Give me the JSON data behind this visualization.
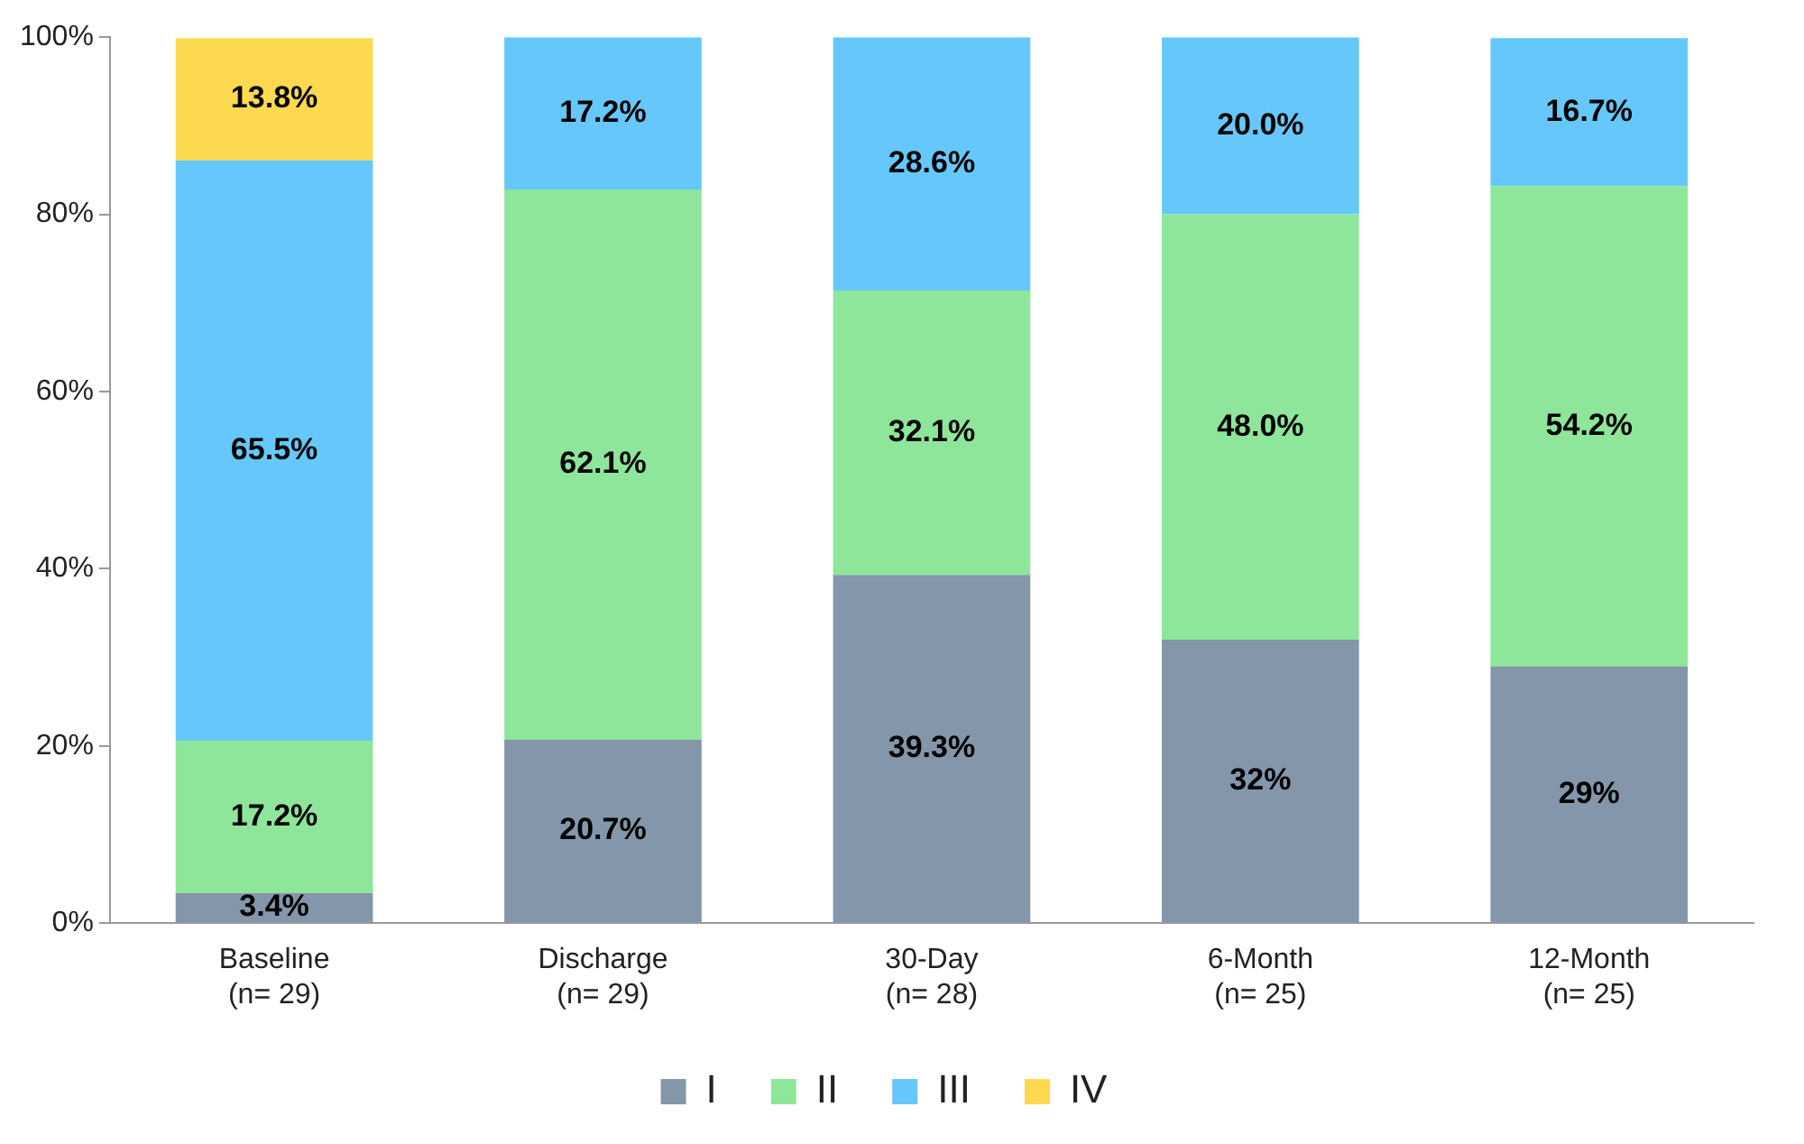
{
  "chart_data": {
    "type": "bar",
    "stacked": true,
    "categories": [
      "Baseline\n(n= 29)",
      "Discharge\n(n= 29)",
      "30-Day\n(n= 28)",
      "6-Month\n(n= 25)",
      "12-Month\n(n= 25)"
    ],
    "series": [
      {
        "name": "I",
        "color": "#8496a9",
        "values": [
          3.4,
          20.7,
          39.3,
          32,
          29
        ],
        "value_labels": [
          "3.4%",
          "20.7%",
          "39.3%",
          "32%",
          "29%"
        ]
      },
      {
        "name": "II",
        "color": "#8ee69a",
        "values": [
          17.2,
          62.1,
          32.1,
          48.0,
          54.2
        ],
        "value_labels": [
          "17.2%",
          "62.1%",
          "32.1%",
          "48.0%",
          "54.2%"
        ]
      },
      {
        "name": "III",
        "color": "#66c8fa",
        "values": [
          65.5,
          17.2,
          28.6,
          20.0,
          16.7
        ],
        "value_labels": [
          "65.5%",
          "17.2%",
          "28.6%",
          "20.0%",
          "16.7%"
        ]
      },
      {
        "name": "IV",
        "color": "#fcd94f",
        "values": [
          13.8,
          null,
          null,
          null,
          null
        ],
        "value_labels": [
          "13.8%",
          null,
          null,
          null,
          null
        ]
      }
    ],
    "ylim": [
      0,
      100
    ],
    "yticks": [
      {
        "value": 0,
        "label": "0%"
      },
      {
        "value": 20,
        "label": "20%"
      },
      {
        "value": 40,
        "label": "40%"
      },
      {
        "value": 60,
        "label": "60%"
      },
      {
        "value": 80,
        "label": "80%"
      },
      {
        "value": 100,
        "label": "100%"
      }
    ],
    "grid": false,
    "legend": "bottom"
  }
}
